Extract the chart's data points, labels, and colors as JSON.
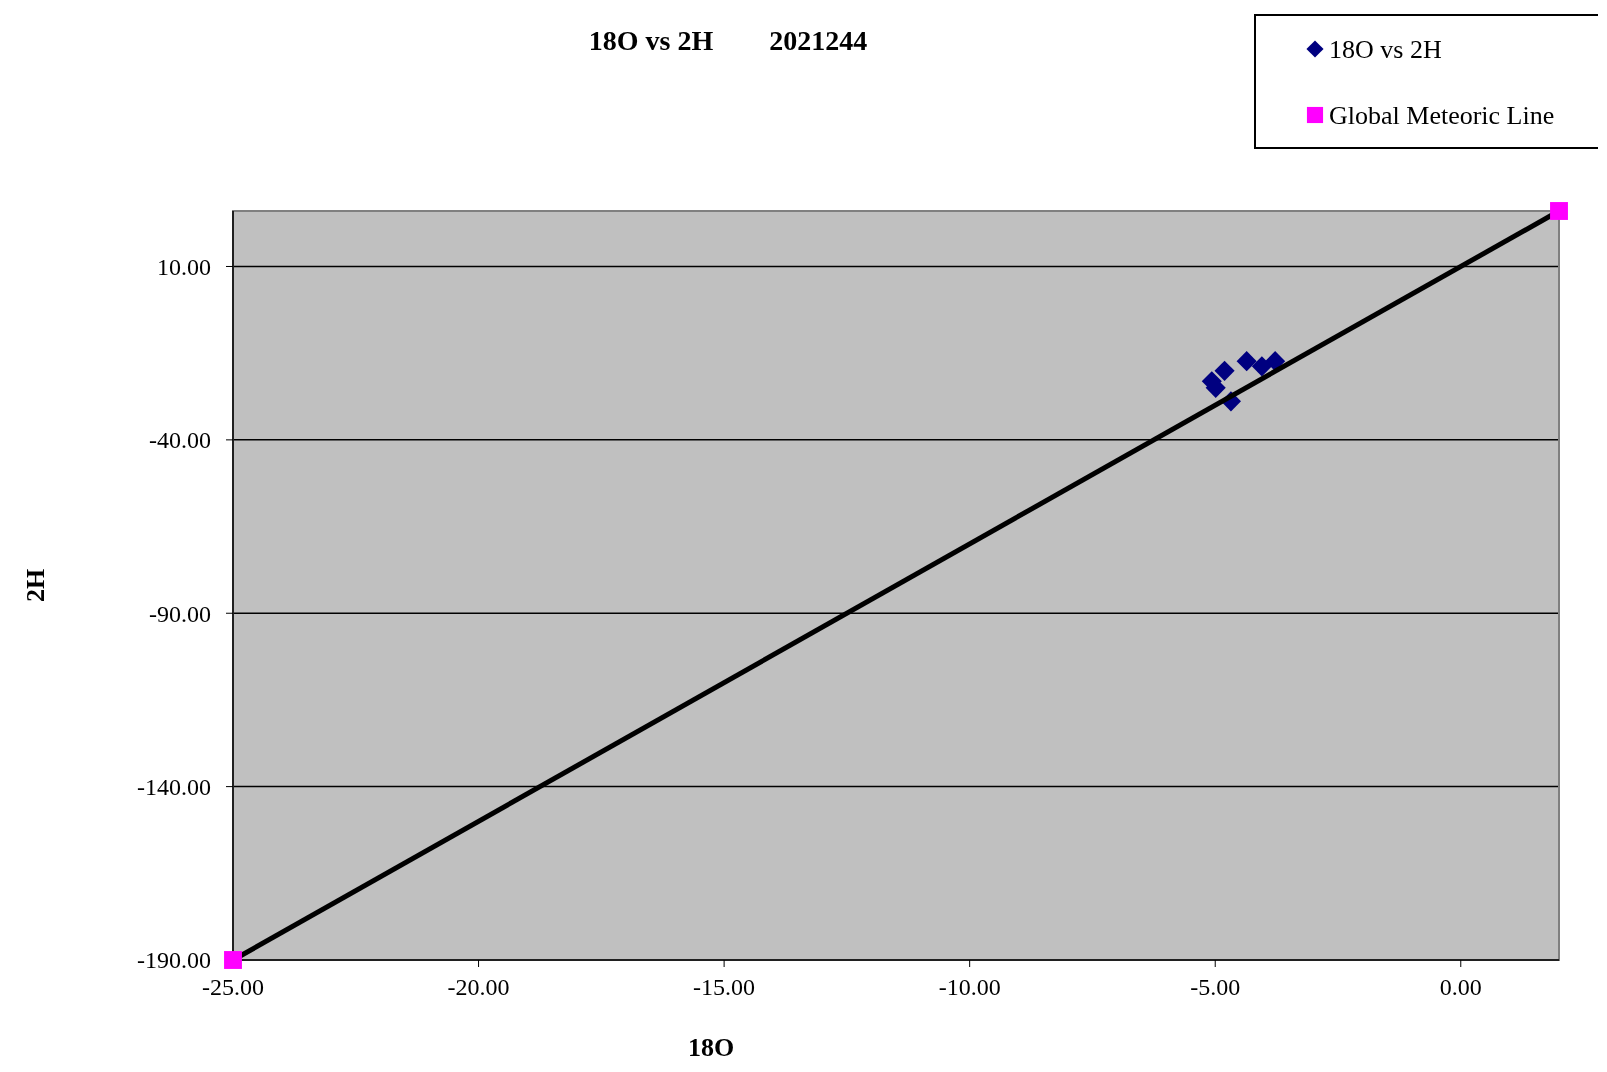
{
  "chart_data": {
    "type": "scatter",
    "title": "18O vs 2H        2021244",
    "xlabel": "18O",
    "ylabel": "2H",
    "xlim": [
      -25,
      2
    ],
    "xticks": [
      {
        "value": -25,
        "label": "-25.00"
      },
      {
        "value": -20,
        "label": "-20.00"
      },
      {
        "value": -15,
        "label": "-15.00"
      },
      {
        "value": -10,
        "label": "-10.00"
      },
      {
        "value": -5,
        "label": "-5.00"
      },
      {
        "value": 0,
        "label": "0.00"
      }
    ],
    "ylim": [
      -190,
      26
    ],
    "yticks": [
      {
        "value": -190,
        "label": "-190.00"
      },
      {
        "value": -140,
        "label": "-140.00"
      },
      {
        "value": -90,
        "label": "-90.00"
      },
      {
        "value": -40,
        "label": "-40.00"
      },
      {
        "value": 10,
        "label": "10.00"
      }
    ],
    "grid": "y",
    "legend": "top right",
    "series": [
      {
        "name": "18O vs 2H",
        "marker": "diamond",
        "color": "#000080",
        "x": [
          -5.07,
          -4.99,
          -4.81,
          -4.36,
          -4.05,
          -3.78,
          -4.68
        ],
        "values": [
          -23.1,
          -25.0,
          -20.1,
          -17.3,
          -18.8,
          -17.3,
          -28.9
        ]
      },
      {
        "name": "Global Meteoric Line",
        "type": "line",
        "marker": "square",
        "color": "#ff00ff",
        "x": [
          -25,
          2
        ],
        "values": [
          -190,
          26
        ]
      }
    ]
  }
}
